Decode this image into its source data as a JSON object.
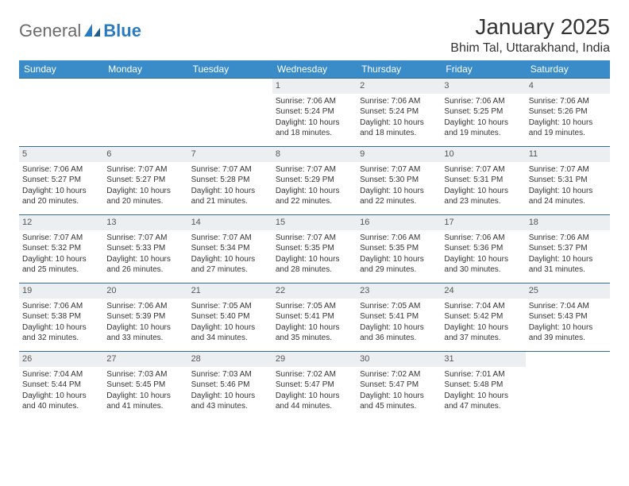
{
  "logo": {
    "text_general": "General",
    "text_blue": "Blue"
  },
  "header": {
    "month_title": "January 2025",
    "location": "Bhim Tal, Uttarakhand, India"
  },
  "colors": {
    "header_bg": "#3a8cc9",
    "header_text": "#ffffff",
    "daynum_bg": "#eceff1",
    "cell_border": "#3a6a8c",
    "logo_general": "#6b6b6b",
    "logo_blue": "#2b7bbf",
    "body_text": "#333333"
  },
  "typography": {
    "month_title_size_pt": 21,
    "location_size_pt": 12,
    "dayheader_size_pt": 9,
    "cell_size_pt": 7.5,
    "logo_size_pt": 16
  },
  "day_headers": [
    "Sunday",
    "Monday",
    "Tuesday",
    "Wednesday",
    "Thursday",
    "Friday",
    "Saturday"
  ],
  "weeks": [
    [
      null,
      null,
      null,
      {
        "n": "1",
        "rise": "Sunrise: 7:06 AM",
        "set": "Sunset: 5:24 PM",
        "dl1": "Daylight: 10 hours",
        "dl2": "and 18 minutes."
      },
      {
        "n": "2",
        "rise": "Sunrise: 7:06 AM",
        "set": "Sunset: 5:24 PM",
        "dl1": "Daylight: 10 hours",
        "dl2": "and 18 minutes."
      },
      {
        "n": "3",
        "rise": "Sunrise: 7:06 AM",
        "set": "Sunset: 5:25 PM",
        "dl1": "Daylight: 10 hours",
        "dl2": "and 19 minutes."
      },
      {
        "n": "4",
        "rise": "Sunrise: 7:06 AM",
        "set": "Sunset: 5:26 PM",
        "dl1": "Daylight: 10 hours",
        "dl2": "and 19 minutes."
      }
    ],
    [
      {
        "n": "5",
        "rise": "Sunrise: 7:06 AM",
        "set": "Sunset: 5:27 PM",
        "dl1": "Daylight: 10 hours",
        "dl2": "and 20 minutes."
      },
      {
        "n": "6",
        "rise": "Sunrise: 7:07 AM",
        "set": "Sunset: 5:27 PM",
        "dl1": "Daylight: 10 hours",
        "dl2": "and 20 minutes."
      },
      {
        "n": "7",
        "rise": "Sunrise: 7:07 AM",
        "set": "Sunset: 5:28 PM",
        "dl1": "Daylight: 10 hours",
        "dl2": "and 21 minutes."
      },
      {
        "n": "8",
        "rise": "Sunrise: 7:07 AM",
        "set": "Sunset: 5:29 PM",
        "dl1": "Daylight: 10 hours",
        "dl2": "and 22 minutes."
      },
      {
        "n": "9",
        "rise": "Sunrise: 7:07 AM",
        "set": "Sunset: 5:30 PM",
        "dl1": "Daylight: 10 hours",
        "dl2": "and 22 minutes."
      },
      {
        "n": "10",
        "rise": "Sunrise: 7:07 AM",
        "set": "Sunset: 5:31 PM",
        "dl1": "Daylight: 10 hours",
        "dl2": "and 23 minutes."
      },
      {
        "n": "11",
        "rise": "Sunrise: 7:07 AM",
        "set": "Sunset: 5:31 PM",
        "dl1": "Daylight: 10 hours",
        "dl2": "and 24 minutes."
      }
    ],
    [
      {
        "n": "12",
        "rise": "Sunrise: 7:07 AM",
        "set": "Sunset: 5:32 PM",
        "dl1": "Daylight: 10 hours",
        "dl2": "and 25 minutes."
      },
      {
        "n": "13",
        "rise": "Sunrise: 7:07 AM",
        "set": "Sunset: 5:33 PM",
        "dl1": "Daylight: 10 hours",
        "dl2": "and 26 minutes."
      },
      {
        "n": "14",
        "rise": "Sunrise: 7:07 AM",
        "set": "Sunset: 5:34 PM",
        "dl1": "Daylight: 10 hours",
        "dl2": "and 27 minutes."
      },
      {
        "n": "15",
        "rise": "Sunrise: 7:07 AM",
        "set": "Sunset: 5:35 PM",
        "dl1": "Daylight: 10 hours",
        "dl2": "and 28 minutes."
      },
      {
        "n": "16",
        "rise": "Sunrise: 7:06 AM",
        "set": "Sunset: 5:35 PM",
        "dl1": "Daylight: 10 hours",
        "dl2": "and 29 minutes."
      },
      {
        "n": "17",
        "rise": "Sunrise: 7:06 AM",
        "set": "Sunset: 5:36 PM",
        "dl1": "Daylight: 10 hours",
        "dl2": "and 30 minutes."
      },
      {
        "n": "18",
        "rise": "Sunrise: 7:06 AM",
        "set": "Sunset: 5:37 PM",
        "dl1": "Daylight: 10 hours",
        "dl2": "and 31 minutes."
      }
    ],
    [
      {
        "n": "19",
        "rise": "Sunrise: 7:06 AM",
        "set": "Sunset: 5:38 PM",
        "dl1": "Daylight: 10 hours",
        "dl2": "and 32 minutes."
      },
      {
        "n": "20",
        "rise": "Sunrise: 7:06 AM",
        "set": "Sunset: 5:39 PM",
        "dl1": "Daylight: 10 hours",
        "dl2": "and 33 minutes."
      },
      {
        "n": "21",
        "rise": "Sunrise: 7:05 AM",
        "set": "Sunset: 5:40 PM",
        "dl1": "Daylight: 10 hours",
        "dl2": "and 34 minutes."
      },
      {
        "n": "22",
        "rise": "Sunrise: 7:05 AM",
        "set": "Sunset: 5:41 PM",
        "dl1": "Daylight: 10 hours",
        "dl2": "and 35 minutes."
      },
      {
        "n": "23",
        "rise": "Sunrise: 7:05 AM",
        "set": "Sunset: 5:41 PM",
        "dl1": "Daylight: 10 hours",
        "dl2": "and 36 minutes."
      },
      {
        "n": "24",
        "rise": "Sunrise: 7:04 AM",
        "set": "Sunset: 5:42 PM",
        "dl1": "Daylight: 10 hours",
        "dl2": "and 37 minutes."
      },
      {
        "n": "25",
        "rise": "Sunrise: 7:04 AM",
        "set": "Sunset: 5:43 PM",
        "dl1": "Daylight: 10 hours",
        "dl2": "and 39 minutes."
      }
    ],
    [
      {
        "n": "26",
        "rise": "Sunrise: 7:04 AM",
        "set": "Sunset: 5:44 PM",
        "dl1": "Daylight: 10 hours",
        "dl2": "and 40 minutes."
      },
      {
        "n": "27",
        "rise": "Sunrise: 7:03 AM",
        "set": "Sunset: 5:45 PM",
        "dl1": "Daylight: 10 hours",
        "dl2": "and 41 minutes."
      },
      {
        "n": "28",
        "rise": "Sunrise: 7:03 AM",
        "set": "Sunset: 5:46 PM",
        "dl1": "Daylight: 10 hours",
        "dl2": "and 43 minutes."
      },
      {
        "n": "29",
        "rise": "Sunrise: 7:02 AM",
        "set": "Sunset: 5:47 PM",
        "dl1": "Daylight: 10 hours",
        "dl2": "and 44 minutes."
      },
      {
        "n": "30",
        "rise": "Sunrise: 7:02 AM",
        "set": "Sunset: 5:47 PM",
        "dl1": "Daylight: 10 hours",
        "dl2": "and 45 minutes."
      },
      {
        "n": "31",
        "rise": "Sunrise: 7:01 AM",
        "set": "Sunset: 5:48 PM",
        "dl1": "Daylight: 10 hours",
        "dl2": "and 47 minutes."
      },
      null
    ]
  ]
}
